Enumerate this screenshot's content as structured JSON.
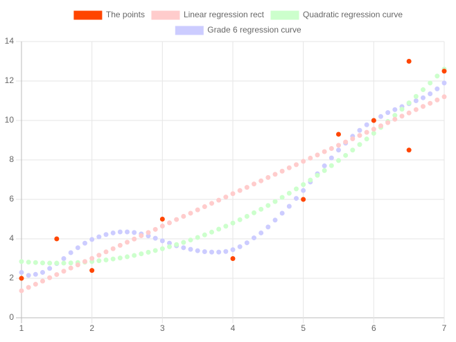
{
  "chart_data": {
    "type": "scatter",
    "x": [
      1,
      1.1,
      1.2,
      1.3,
      1.4,
      1.5,
      1.6,
      1.7,
      1.8,
      1.9,
      2,
      2.1,
      2.2,
      2.3,
      2.4,
      2.5,
      2.6,
      2.7,
      2.8,
      2.9,
      3,
      3.1,
      3.2,
      3.3,
      3.4,
      3.5,
      3.6,
      3.7,
      3.8,
      3.9,
      4,
      4.1,
      4.2,
      4.3,
      4.4,
      4.5,
      4.6,
      4.7,
      4.8,
      4.9,
      5,
      5.1,
      5.2,
      5.3,
      5.4,
      5.5,
      5.6,
      5.7,
      5.8,
      5.9,
      6,
      6.1,
      6.2,
      6.3,
      6.4,
      6.5,
      6.6,
      6.7,
      6.8,
      6.9,
      7
    ],
    "series": [
      {
        "name": "The points",
        "color": "#ff4500",
        "x": [
          1,
          1.5,
          2,
          3,
          4,
          5,
          5.5,
          6,
          6.5,
          6.5,
          7
        ],
        "values": [
          2,
          4,
          2.4,
          5,
          3,
          6,
          9.3,
          10,
          13,
          8.5,
          12.5
        ]
      },
      {
        "name": "Linear regression rect",
        "color": "#ffcccc",
        "values": [
          1.37,
          1.54,
          1.7,
          1.86,
          2.03,
          2.19,
          2.36,
          2.52,
          2.68,
          2.85,
          3.01,
          3.17,
          3.34,
          3.5,
          3.67,
          3.83,
          3.99,
          4.16,
          4.32,
          4.48,
          4.65,
          4.81,
          4.98,
          5.14,
          5.3,
          5.47,
          5.63,
          5.8,
          5.96,
          6.12,
          6.29,
          6.45,
          6.61,
          6.78,
          6.94,
          7.11,
          7.27,
          7.43,
          7.6,
          7.76,
          7.93,
          8.09,
          8.25,
          8.42,
          8.58,
          8.74,
          8.91,
          9.07,
          9.24,
          9.4,
          9.56,
          9.73,
          9.89,
          10.06,
          10.22,
          10.38,
          10.55,
          10.71,
          10.87,
          11.04,
          11.2
        ]
      },
      {
        "name": "Quadratic regression curve",
        "color": "#ccffcc",
        "values": [
          2.85,
          2.82,
          2.8,
          2.78,
          2.77,
          2.77,
          2.77,
          2.78,
          2.8,
          2.82,
          2.85,
          2.89,
          2.93,
          2.98,
          3.03,
          3.09,
          3.16,
          3.24,
          3.32,
          3.41,
          3.5,
          3.6,
          3.71,
          3.82,
          3.94,
          4.07,
          4.2,
          4.34,
          4.49,
          4.64,
          4.8,
          4.97,
          5.14,
          5.32,
          5.5,
          5.69,
          5.89,
          6.1,
          6.31,
          6.53,
          6.75,
          6.98,
          7.22,
          7.46,
          7.71,
          7.97,
          8.23,
          8.5,
          8.78,
          9.06,
          9.35,
          9.65,
          9.95,
          10.26,
          10.57,
          10.89,
          11.22,
          11.56,
          11.9,
          12.25,
          12.6
        ]
      },
      {
        "name": "Grade 6 regression curve",
        "color": "#ccccff",
        "values": [
          2.3,
          2.15,
          2.2,
          2.3,
          2.5,
          2.75,
          3.0,
          3.3,
          3.55,
          3.78,
          3.97,
          4.1,
          4.22,
          4.3,
          4.35,
          4.35,
          4.32,
          4.25,
          4.15,
          4.03,
          3.9,
          3.78,
          3.65,
          3.55,
          3.47,
          3.4,
          3.35,
          3.33,
          3.33,
          3.36,
          3.45,
          3.6,
          3.8,
          4.05,
          4.3,
          4.6,
          4.95,
          5.3,
          5.65,
          6.05,
          6.45,
          6.88,
          7.3,
          7.7,
          8.1,
          8.5,
          8.85,
          9.2,
          9.5,
          9.78,
          10.0,
          10.2,
          10.4,
          10.55,
          10.7,
          10.85,
          11.0,
          11.15,
          11.35,
          11.6,
          11.9
        ]
      }
    ],
    "xlim": [
      1,
      7
    ],
    "xticks": [
      1,
      2,
      3,
      4,
      5,
      6,
      7
    ],
    "ylim": [
      0,
      14
    ],
    "yticks": [
      0,
      2,
      4,
      6,
      8,
      10,
      12,
      14
    ],
    "grid": true,
    "legend": "top"
  }
}
